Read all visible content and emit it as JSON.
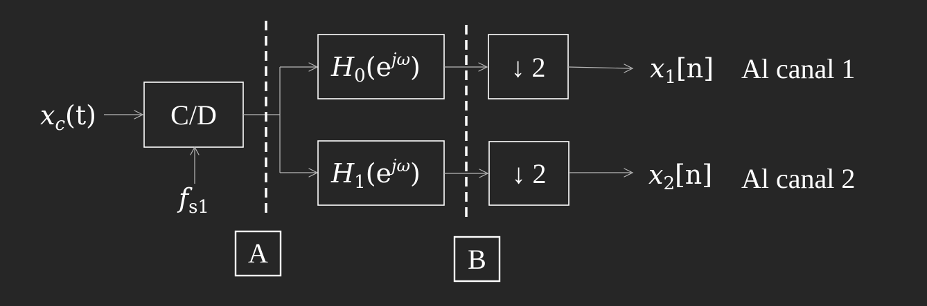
{
  "input_signal": {
    "symbol": "x",
    "subscript": "c",
    "argument": "(t)"
  },
  "converter": {
    "label": "C/D"
  },
  "sampling_rate": {
    "symbol": "f",
    "subscript": "s1"
  },
  "filters": [
    {
      "symbol": "H",
      "subscript": "0",
      "open": "(e",
      "exponent": "jω",
      "close": ")"
    },
    {
      "symbol": "H",
      "subscript": "1",
      "open": "(e",
      "exponent": "jω",
      "close": ")"
    }
  ],
  "downsamplers": [
    {
      "label": "↓ 2"
    },
    {
      "label": "↓ 2"
    }
  ],
  "outputs": [
    {
      "symbol": "x",
      "subscript": "1",
      "argument": "[n]",
      "destination": "Al canal 1"
    },
    {
      "symbol": "x",
      "subscript": "2",
      "argument": "[n]",
      "destination": "Al canal 2"
    }
  ],
  "markers": [
    {
      "label": "A"
    },
    {
      "label": "B"
    }
  ]
}
